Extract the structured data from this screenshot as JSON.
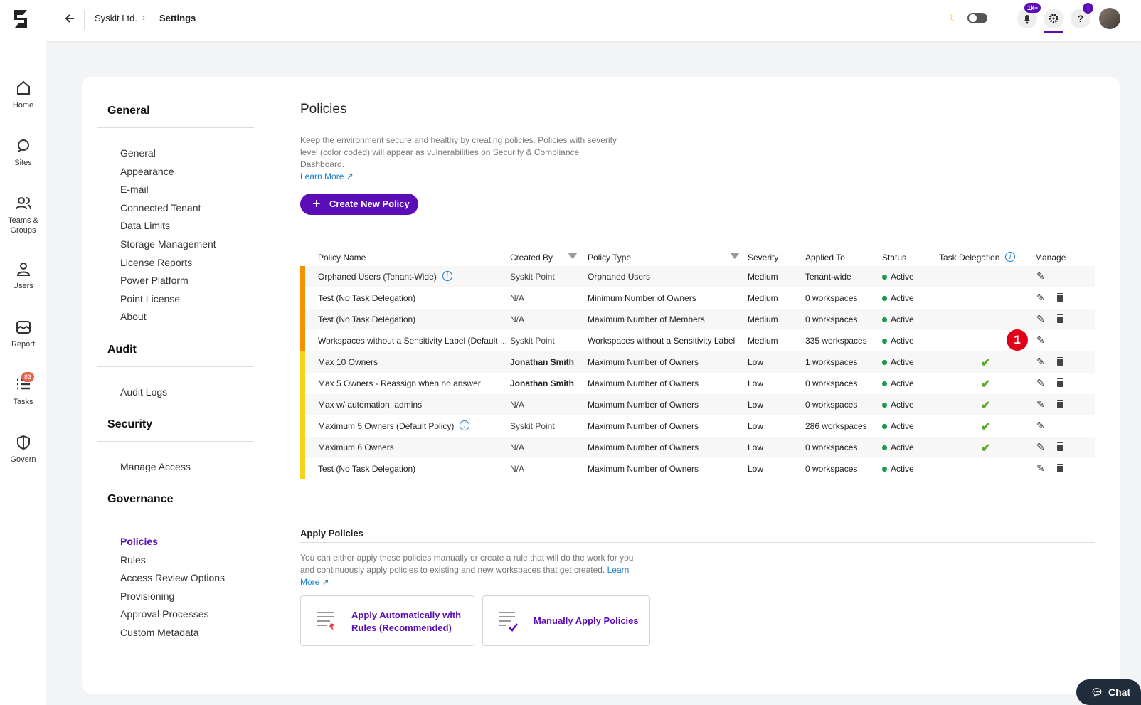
{
  "header": {
    "breadcrumb": [
      "Syskit Ltd.",
      "Settings"
    ],
    "notification_badge": "1k+",
    "help_badge": "!"
  },
  "sidebar": {
    "items": [
      "Home",
      "Sites",
      "Teams & Groups",
      "Users",
      "Report",
      "Tasks",
      "Govern"
    ],
    "tasks_badge": "83"
  },
  "settings_nav": {
    "active": "Policies",
    "sections": [
      {
        "title": "General",
        "items": [
          "General",
          "Appearance",
          "E-mail",
          "Connected Tenant",
          "Data Limits",
          "Storage Management",
          "License Reports",
          "Power Platform",
          "Point License",
          "About"
        ]
      },
      {
        "title": "Audit",
        "items": [
          "Audit Logs"
        ]
      },
      {
        "title": "Security",
        "items": [
          "Manage Access"
        ]
      },
      {
        "title": "Governance",
        "items": [
          "Policies",
          "Rules",
          "Access Review Options",
          "Provisioning",
          "Approval Processes",
          "Custom Metadata"
        ]
      }
    ]
  },
  "policies": {
    "title": "Policies",
    "description": "Keep the environment secure and healthy by creating policies. Policies with severity level (color coded) will appear as vulnerabilities on Security & Compliance Dashboard.",
    "learn_more": "Learn More",
    "create_button": "Create New Policy",
    "table": {
      "columns": [
        "Policy Name",
        "Created By",
        "Policy Type",
        "Severity",
        "Applied To",
        "Status",
        "Task Delegation",
        "Manage"
      ],
      "severity_colors": {
        "Medium": "#f39200",
        "Low": "#f7d21a"
      },
      "rows": [
        {
          "name": "Orphaned Users (Tenant-Wide)",
          "info": true,
          "created_by": "Syskit Point",
          "type": "Orphaned Users",
          "severity": "Medium",
          "applied_to": "Tenant-wide",
          "status": "Active",
          "task_delegation": false,
          "deletable": false
        },
        {
          "name": "Test (No Task Delegation)",
          "info": false,
          "created_by": "N/A",
          "type": "Minimum Number of Owners",
          "severity": "Medium",
          "applied_to": "0 workspaces",
          "status": "Active",
          "task_delegation": false,
          "deletable": true
        },
        {
          "name": "Test (No Task Delegation)",
          "info": false,
          "created_by": "N/A",
          "type": "Maximum Number of Members",
          "severity": "Medium",
          "applied_to": "0 workspaces",
          "status": "Active",
          "task_delegation": false,
          "deletable": true
        },
        {
          "name": "Workspaces without a Sensitivity Label (Default ...",
          "info": false,
          "created_by": "Syskit Point",
          "type": "Workspaces without a Sensitivity Label",
          "severity": "Medium",
          "applied_to": "335 workspaces",
          "status": "Active",
          "task_delegation": false,
          "deletable": false
        },
        {
          "name": "Max 10 Owners",
          "info": false,
          "created_by": "Jonathan Smith",
          "type": "Maximum Number of Owners",
          "severity": "Low",
          "applied_to": "1 workspaces",
          "status": "Active",
          "task_delegation": true,
          "deletable": true
        },
        {
          "name": "Max 5 Owners - Reassign when no answer",
          "info": false,
          "created_by": "Jonathan Smith",
          "type": "Maximum Number of Owners",
          "severity": "Low",
          "applied_to": "0 workspaces",
          "status": "Active",
          "task_delegation": true,
          "deletable": true
        },
        {
          "name": "Max w/ automation, admins",
          "info": false,
          "created_by": "N/A",
          "type": "Maximum Number of Owners",
          "severity": "Low",
          "applied_to": "0 workspaces",
          "status": "Active",
          "task_delegation": true,
          "deletable": true
        },
        {
          "name": "Maximum 5 Owners (Default Policy)",
          "info": true,
          "created_by": "Syskit Point",
          "type": "Maximum Number of Owners",
          "severity": "Low",
          "applied_to": "286 workspaces",
          "status": "Active",
          "task_delegation": true,
          "deletable": false
        },
        {
          "name": "Maximum 6 Owners",
          "info": false,
          "created_by": "N/A",
          "type": "Maximum Number of Owners",
          "severity": "Low",
          "applied_to": "0 workspaces",
          "status": "Active",
          "task_delegation": true,
          "deletable": true
        },
        {
          "name": "Test (No Task Delegation)",
          "info": false,
          "created_by": "N/A",
          "type": "Maximum Number of Owners",
          "severity": "Low",
          "applied_to": "0 workspaces",
          "status": "Active",
          "task_delegation": false,
          "deletable": true
        }
      ]
    }
  },
  "callout_marker": "1",
  "apply_policies": {
    "title": "Apply Policies",
    "description": "You can either apply these policies manually or create a rule that will do the work for you and continuously apply policies to existing and new workspaces that get created.",
    "learn_more": "Learn More",
    "cards": [
      "Apply Automatically with Rules (Recommended)",
      "Manually Apply Policies"
    ]
  },
  "chat_button": "Chat"
}
